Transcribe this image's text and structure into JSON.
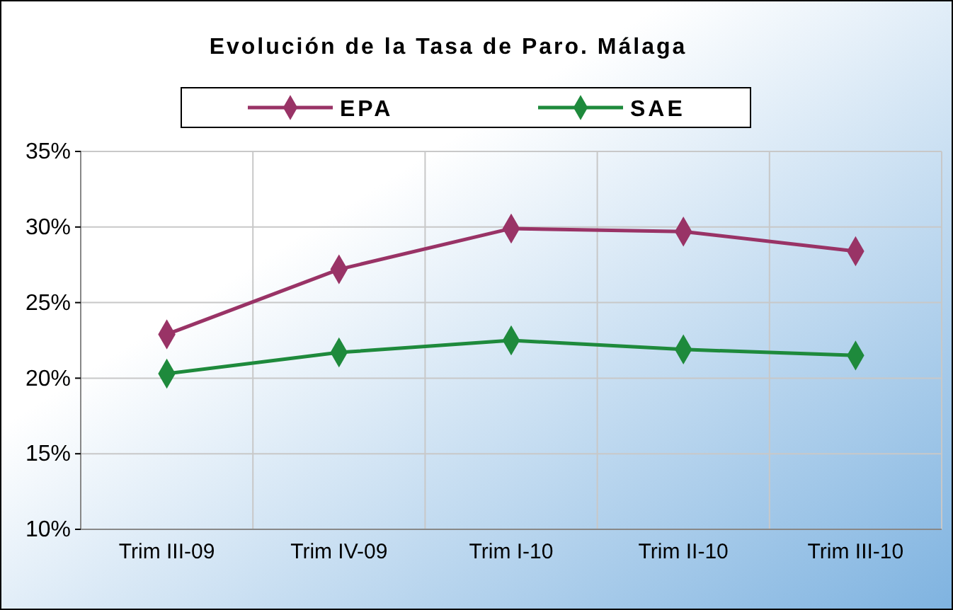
{
  "chart_data": {
    "type": "line",
    "title": "Evolución de la Tasa de Paro. Málaga",
    "categories": [
      "Trim III-09",
      "Trim IV-09",
      "Trim I-10",
      "Trim II-10",
      "Trim III-10"
    ],
    "series": [
      {
        "name": "EPA",
        "color": "#993366",
        "values": [
          22.9,
          27.2,
          29.9,
          29.7,
          28.4
        ]
      },
      {
        "name": "SAE",
        "color": "#1e8a3c",
        "values": [
          20.3,
          21.7,
          22.5,
          21.9,
          21.5
        ]
      }
    ],
    "ylim": [
      10,
      35
    ],
    "yticks": [
      {
        "value": 10,
        "label": "10%"
      },
      {
        "value": 15,
        "label": "15%"
      },
      {
        "value": 20,
        "label": "20%"
      },
      {
        "value": 25,
        "label": "25%"
      },
      {
        "value": 30,
        "label": "30%"
      },
      {
        "value": 35,
        "label": "35%"
      }
    ],
    "grid": true,
    "legend": "top",
    "marker": "diamond",
    "line_style": "solid"
  }
}
